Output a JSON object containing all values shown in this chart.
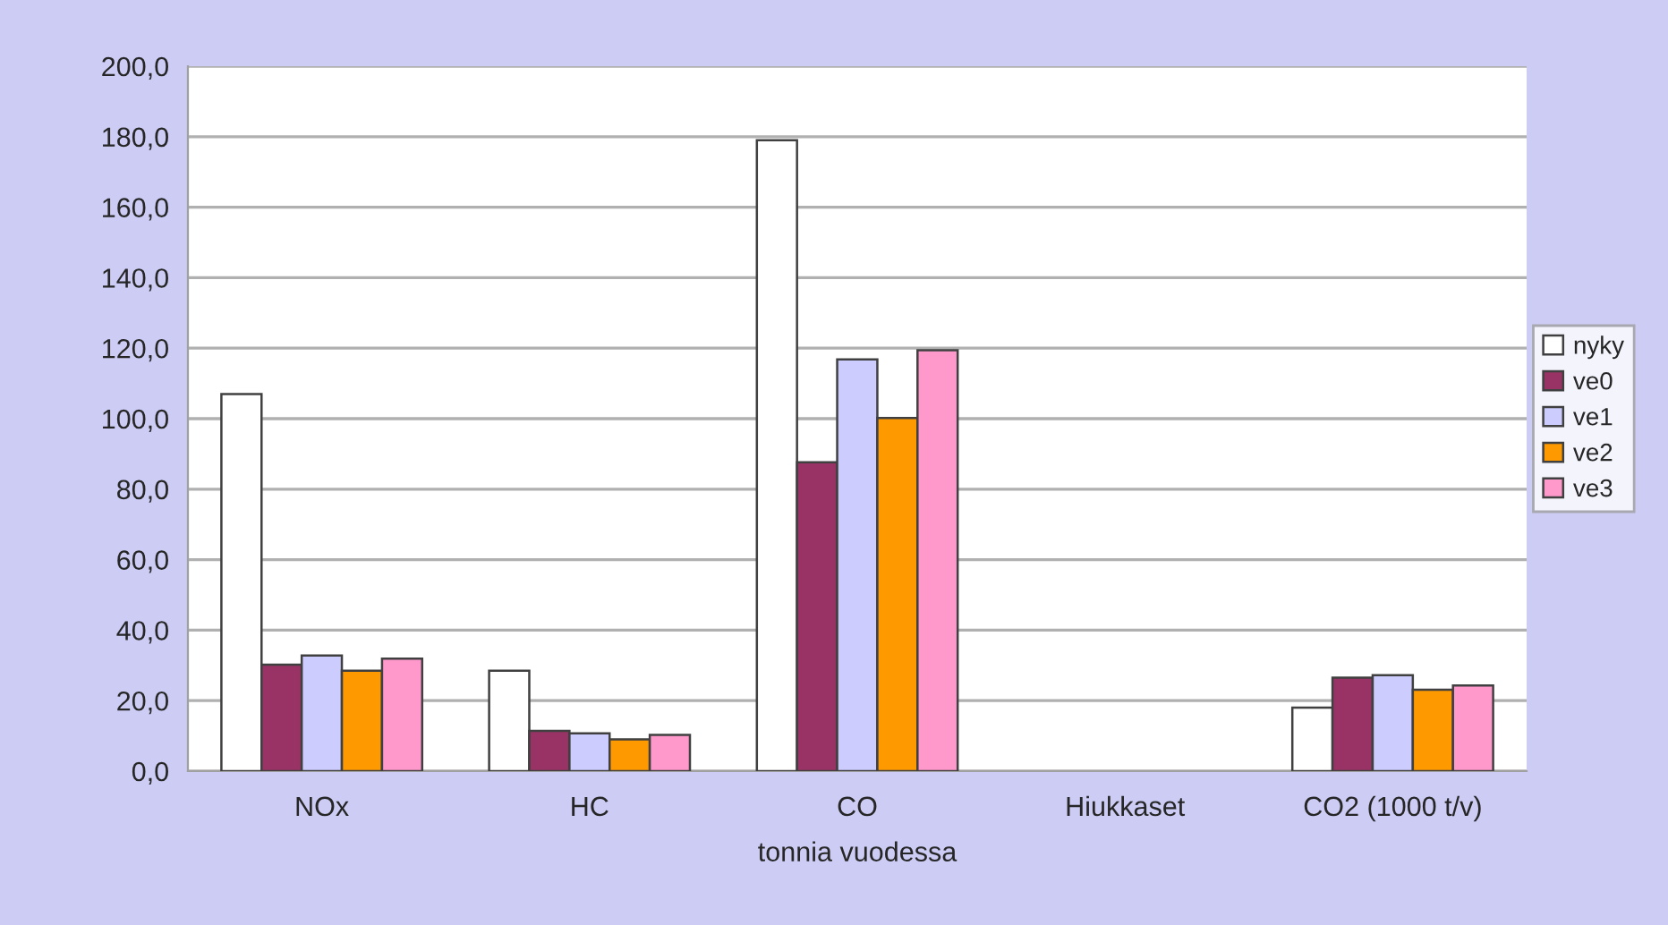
{
  "chart_data": {
    "type": "bar",
    "xlabel": "tonnia vuodessa",
    "categories": [
      "NOx",
      "HC",
      "CO",
      "Hiukkaset",
      "CO2 (1000 t/v)"
    ],
    "series": [
      {
        "name": "nyky",
        "color": "#ffffff",
        "values": [
          107,
          28.5,
          179,
          null,
          18.0
        ]
      },
      {
        "name": "ve0",
        "color": "#993366",
        "values": [
          30.2,
          11.4,
          87.6,
          null,
          26.5
        ]
      },
      {
        "name": "ve1",
        "color": "#ccccff",
        "values": [
          32.8,
          10.7,
          116.8,
          null,
          27.2
        ]
      },
      {
        "name": "ve2",
        "color": "#ff9900",
        "values": [
          28.5,
          9.0,
          100.2,
          null,
          23.1
        ]
      },
      {
        "name": "ve3",
        "color": "#ff99cc",
        "values": [
          31.9,
          10.3,
          119.4,
          null,
          24.3
        ]
      }
    ],
    "ylim": [
      0,
      200
    ],
    "yticks": [
      {
        "value": 0,
        "label": "0,0"
      },
      {
        "value": 20,
        "label": "20,0"
      },
      {
        "value": 40,
        "label": "40,0"
      },
      {
        "value": 60,
        "label": "60,0"
      },
      {
        "value": 80,
        "label": "80,0"
      },
      {
        "value": 100,
        "label": "100,0"
      },
      {
        "value": 120,
        "label": "120,0"
      },
      {
        "value": 140,
        "label": "140,0"
      },
      {
        "value": 160,
        "label": "160,0"
      },
      {
        "value": 180,
        "label": "180,0"
      },
      {
        "value": 200,
        "label": "200,0"
      }
    ],
    "grid": "y",
    "legend": "right"
  }
}
